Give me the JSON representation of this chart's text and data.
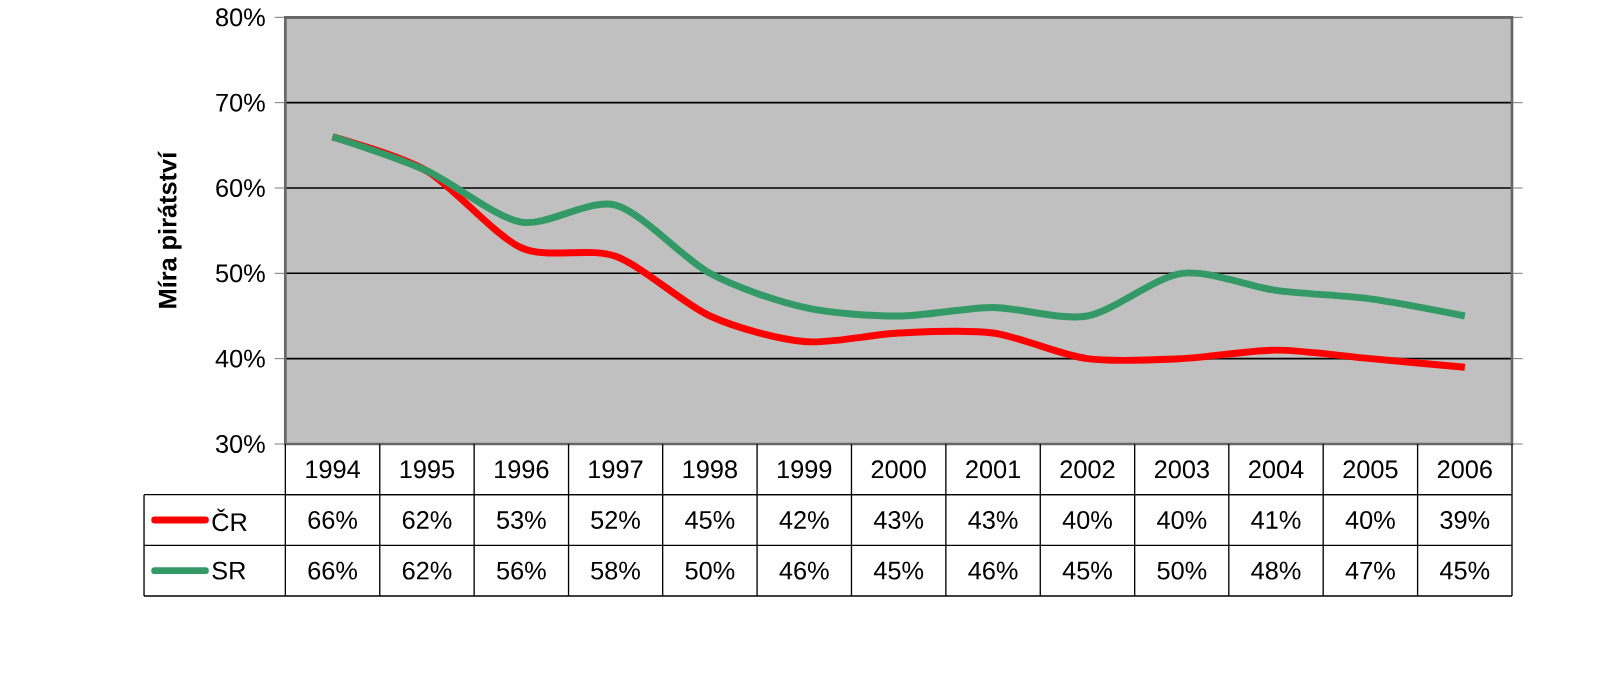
{
  "chart_data": {
    "type": "line",
    "ylabel": "Míra pirátství",
    "categories": [
      "1994",
      "1995",
      "1996",
      "1997",
      "1998",
      "1999",
      "2000",
      "2001",
      "2002",
      "2003",
      "2004",
      "2005",
      "2006"
    ],
    "series": [
      {
        "name": "ČR",
        "color": "#ff0000",
        "values": [
          66,
          62,
          53,
          52,
          45,
          42,
          43,
          43,
          40,
          40,
          41,
          40,
          39
        ],
        "value_labels": [
          "66%",
          "62%",
          "53%",
          "52%",
          "45%",
          "42%",
          "43%",
          "43%",
          "40%",
          "40%",
          "41%",
          "40%",
          "39%"
        ]
      },
      {
        "name": "SR",
        "color": "#339966",
        "values": [
          66,
          62,
          56,
          58,
          50,
          46,
          45,
          46,
          45,
          50,
          48,
          47,
          45
        ],
        "value_labels": [
          "66%",
          "62%",
          "56%",
          "58%",
          "50%",
          "46%",
          "45%",
          "46%",
          "45%",
          "50%",
          "48%",
          "47%",
          "45%"
        ]
      }
    ],
    "ylim": [
      30,
      80
    ],
    "yticks": [
      {
        "value": 30,
        "label": "30%"
      },
      {
        "value": 40,
        "label": "40%"
      },
      {
        "value": 50,
        "label": "50%"
      },
      {
        "value": 60,
        "label": "60%"
      },
      {
        "value": 70,
        "label": "70%"
      },
      {
        "value": 80,
        "label": "80%"
      }
    ],
    "grid": "y",
    "legend": "bottom left",
    "line_style": "solid",
    "marker": "none"
  }
}
